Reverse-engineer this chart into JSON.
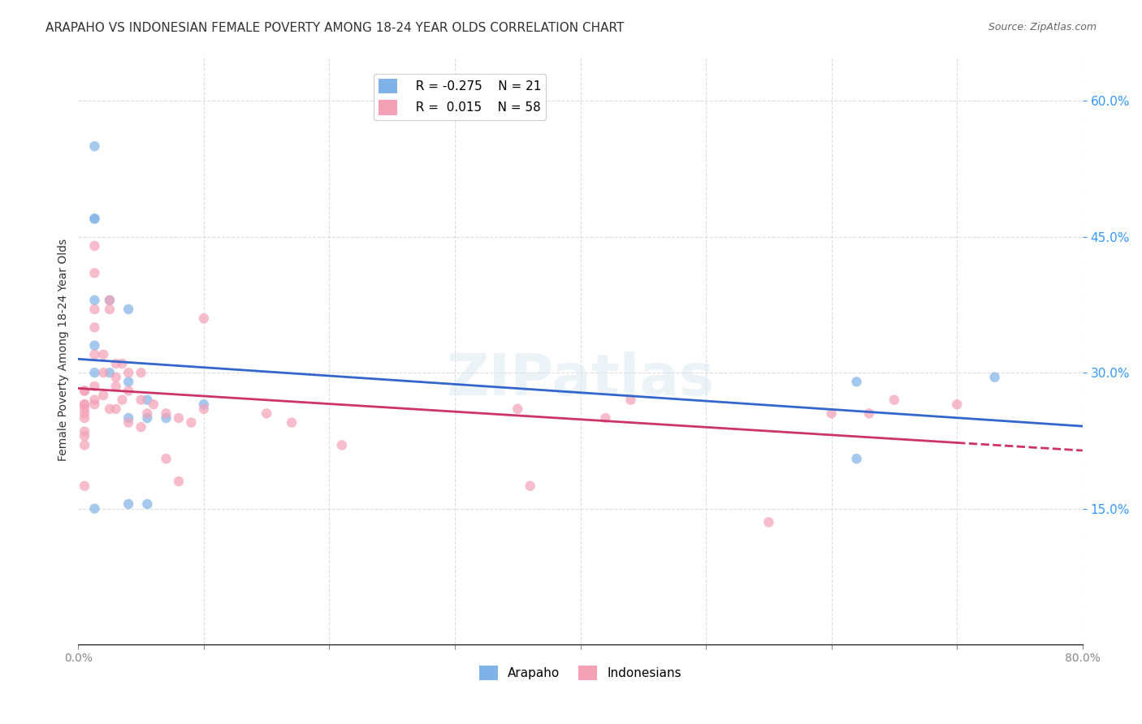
{
  "title": "ARAPAHO VS INDONESIAN FEMALE POVERTY AMONG 18-24 YEAR OLDS CORRELATION CHART",
  "source": "Source: ZipAtlas.com",
  "ylabel": "Female Poverty Among 18-24 Year Olds",
  "xlabel": "",
  "xlim": [
    0.0,
    0.8
  ],
  "ylim": [
    0.0,
    0.65
  ],
  "xticks": [
    0.0,
    0.1,
    0.2,
    0.3,
    0.4,
    0.5,
    0.6,
    0.7,
    0.8
  ],
  "xticklabels": [
    "0.0%",
    "",
    "",
    "",
    "",
    "",
    "",
    "",
    "80.0%"
  ],
  "yticks_right": [
    0.15,
    0.3,
    0.45,
    0.6
  ],
  "ytick_right_labels": [
    "15.0%",
    "30.0%",
    "45.0%",
    "60.0%"
  ],
  "arapaho_color": "#7fb3e8",
  "indonesian_color": "#f4a0b5",
  "arapaho_line_color": "#3366cc",
  "indonesian_line_color": "#cc3366",
  "legend_arapaho_R": "-0.275",
  "legend_arapaho_N": "21",
  "legend_indonesian_R": "0.015",
  "legend_indonesian_N": "58",
  "watermark": "ZIPatlas",
  "arapaho_x": [
    0.013,
    0.013,
    0.013,
    0.013,
    0.013,
    0.013,
    0.013,
    0.025,
    0.025,
    0.04,
    0.04,
    0.04,
    0.04,
    0.055,
    0.055,
    0.055,
    0.07,
    0.1,
    0.62,
    0.62,
    0.73
  ],
  "arapaho_y": [
    0.55,
    0.47,
    0.47,
    0.38,
    0.33,
    0.3,
    0.15,
    0.38,
    0.3,
    0.37,
    0.29,
    0.25,
    0.155,
    0.27,
    0.25,
    0.155,
    0.25,
    0.265,
    0.29,
    0.205,
    0.295
  ],
  "indonesian_x": [
    0.005,
    0.005,
    0.005,
    0.005,
    0.005,
    0.005,
    0.005,
    0.005,
    0.005,
    0.005,
    0.005,
    0.013,
    0.013,
    0.013,
    0.013,
    0.013,
    0.013,
    0.013,
    0.013,
    0.02,
    0.02,
    0.02,
    0.025,
    0.025,
    0.025,
    0.03,
    0.03,
    0.03,
    0.03,
    0.035,
    0.035,
    0.04,
    0.04,
    0.04,
    0.05,
    0.05,
    0.05,
    0.055,
    0.06,
    0.07,
    0.07,
    0.08,
    0.08,
    0.09,
    0.1,
    0.1,
    0.15,
    0.17,
    0.21,
    0.35,
    0.36,
    0.42,
    0.44,
    0.55,
    0.6,
    0.63,
    0.65,
    0.7
  ],
  "indonesian_y": [
    0.28,
    0.28,
    0.265,
    0.265,
    0.26,
    0.255,
    0.25,
    0.235,
    0.23,
    0.22,
    0.175,
    0.44,
    0.41,
    0.37,
    0.35,
    0.32,
    0.285,
    0.27,
    0.265,
    0.32,
    0.3,
    0.275,
    0.38,
    0.37,
    0.26,
    0.31,
    0.295,
    0.285,
    0.26,
    0.31,
    0.27,
    0.3,
    0.28,
    0.245,
    0.3,
    0.27,
    0.24,
    0.255,
    0.265,
    0.255,
    0.205,
    0.25,
    0.18,
    0.245,
    0.36,
    0.26,
    0.255,
    0.245,
    0.22,
    0.26,
    0.175,
    0.25,
    0.27,
    0.135,
    0.255,
    0.255,
    0.27,
    0.265
  ],
  "bg_color": "#ffffff",
  "grid_color": "#dddddd",
  "title_fontsize": 11,
  "axis_fontsize": 9,
  "marker_size": 80,
  "marker_alpha": 0.7,
  "line_width": 2.0
}
